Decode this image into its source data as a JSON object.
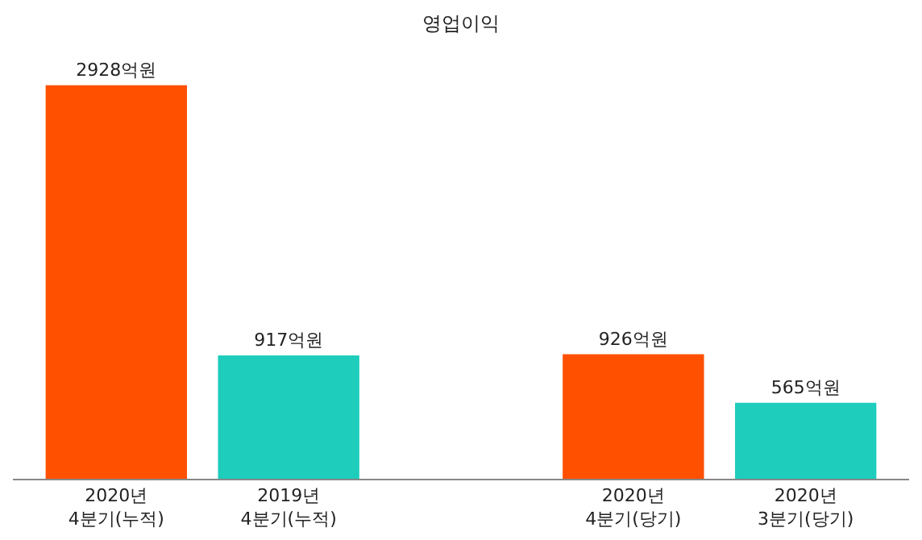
{
  "chart_data": {
    "type": "bar",
    "title": "영업이익",
    "categories": [
      "2020년\n4분기(누적)",
      "2019년\n4분기(누적)",
      null,
      "2020년\n4분기(당기)",
      "2020년\n3분기(당기)"
    ],
    "values": [
      2928,
      917,
      null,
      926,
      565
    ],
    "colors": [
      "#ff5000",
      "#1ecdbc",
      "#ff5000",
      "#ff5000",
      "#1ecdbc"
    ],
    "value_labels": [
      "2928억원",
      "917억원",
      null,
      "926억원",
      "565억원"
    ]
  }
}
